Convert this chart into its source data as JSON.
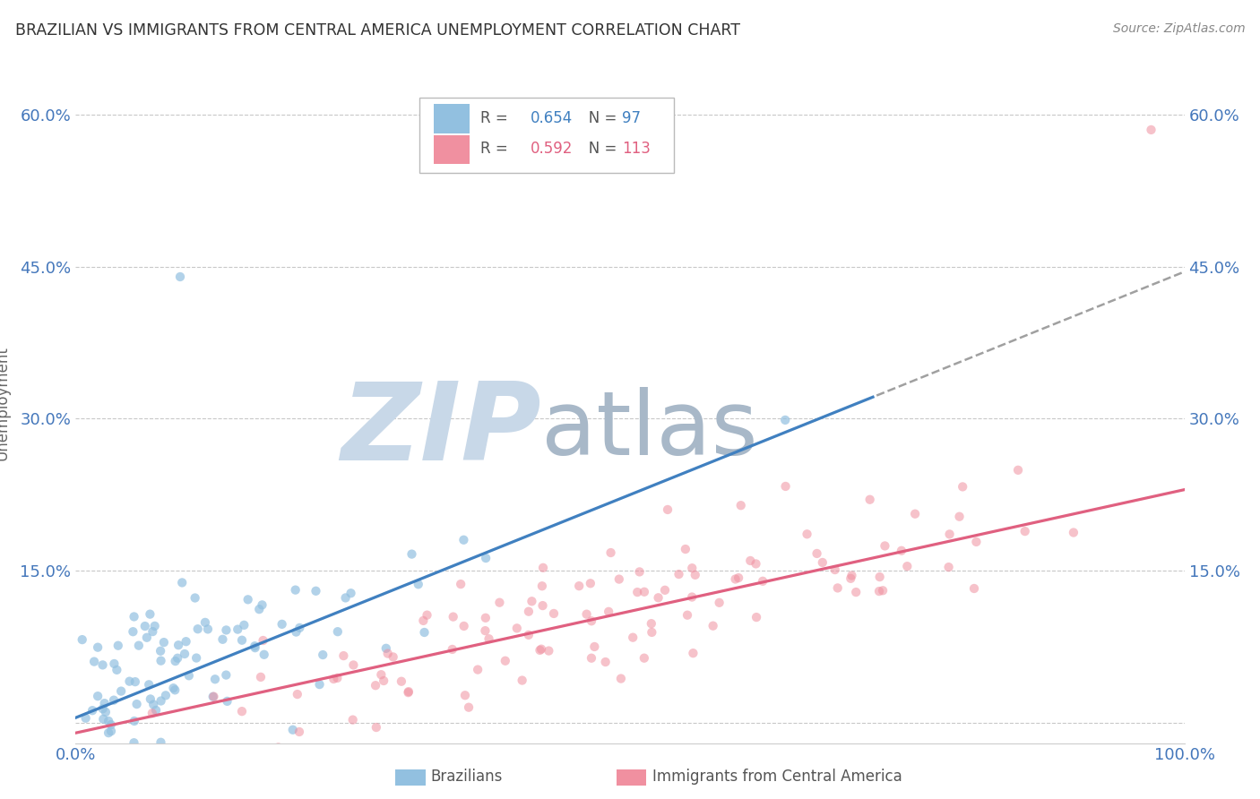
{
  "title": "BRAZILIAN VS IMMIGRANTS FROM CENTRAL AMERICA UNEMPLOYMENT CORRELATION CHART",
  "source": "Source: ZipAtlas.com",
  "ylabel": "Unemployment",
  "xlabel": "",
  "xlim": [
    0.0,
    1.0
  ],
  "ylim": [
    -0.02,
    0.65
  ],
  "ytick_positions": [
    0.0,
    0.15,
    0.3,
    0.45,
    0.6
  ],
  "ytick_labels": [
    "",
    "15.0%",
    "30.0%",
    "45.0%",
    "60.0%"
  ],
  "grid_color": "#c8c8c8",
  "background_color": "#ffffff",
  "watermark_zip_color": "#c8d8e8",
  "watermark_atlas_color": "#a8b8c8",
  "legend_r1": "R = 0.654",
  "legend_n1": "N = 97",
  "legend_r2": "R = 0.592",
  "legend_n2": "N = 113",
  "blue_color": "#92c0e0",
  "pink_color": "#f090a0",
  "blue_line_color": "#4080c0",
  "pink_line_color": "#e06080",
  "dashed_line_color": "#a0a0a0",
  "axis_label_color": "#4477bb",
  "seed": 42,
  "n_blue": 97,
  "n_pink": 113,
  "blue_reg_slope": 0.44,
  "blue_reg_intercept": 0.005,
  "pink_reg_slope": 0.24,
  "pink_reg_intercept": -0.01
}
